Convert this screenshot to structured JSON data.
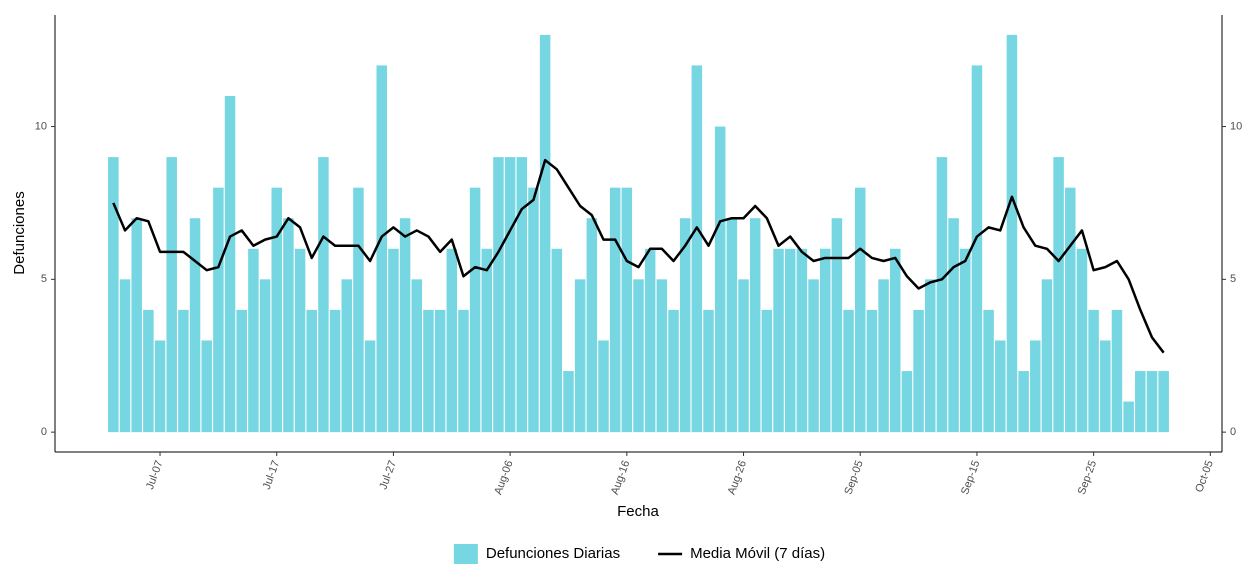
{
  "chart_data": {
    "type": "bar",
    "x_label": "Fecha",
    "y_label": "Defunciones",
    "x": [
      "Jul-03",
      "Jul-04",
      "Jul-05",
      "Jul-06",
      "Jul-07",
      "Jul-08",
      "Jul-09",
      "Jul-10",
      "Jul-11",
      "Jul-12",
      "Jul-13",
      "Jul-14",
      "Jul-15",
      "Jul-16",
      "Jul-17",
      "Jul-18",
      "Jul-19",
      "Jul-20",
      "Jul-21",
      "Jul-22",
      "Jul-23",
      "Jul-24",
      "Jul-25",
      "Jul-26",
      "Jul-27",
      "Jul-28",
      "Jul-29",
      "Jul-30",
      "Jul-31",
      "Aug-01",
      "Aug-02",
      "Aug-03",
      "Aug-04",
      "Aug-05",
      "Aug-06",
      "Aug-07",
      "Aug-08",
      "Aug-09",
      "Aug-10",
      "Aug-11",
      "Aug-12",
      "Aug-13",
      "Aug-14",
      "Aug-15",
      "Aug-16",
      "Aug-17",
      "Aug-18",
      "Aug-19",
      "Aug-20",
      "Aug-21",
      "Aug-22",
      "Aug-23",
      "Aug-24",
      "Aug-25",
      "Aug-26",
      "Aug-27",
      "Aug-28",
      "Aug-29",
      "Aug-30",
      "Aug-31",
      "Sep-01",
      "Sep-02",
      "Sep-03",
      "Sep-04",
      "Sep-05",
      "Sep-06",
      "Sep-07",
      "Sep-08",
      "Sep-09",
      "Sep-10",
      "Sep-11",
      "Sep-12",
      "Sep-13",
      "Sep-14",
      "Sep-15",
      "Sep-16",
      "Sep-17",
      "Sep-18",
      "Sep-19",
      "Sep-20",
      "Sep-21",
      "Sep-22",
      "Sep-23",
      "Sep-24",
      "Sep-25",
      "Sep-26",
      "Sep-27",
      "Sep-28",
      "Sep-29",
      "Sep-30",
      "Oct-01"
    ],
    "series": [
      {
        "name": "Defunciones Diarias",
        "type": "bar",
        "color": "#76d7e3",
        "values": [
          9,
          5,
          7,
          4,
          3,
          9,
          4,
          7,
          3,
          8,
          11,
          4,
          6,
          5,
          8,
          7,
          6,
          4,
          9,
          4,
          5,
          8,
          3,
          12,
          6,
          7,
          5,
          4,
          4,
          6,
          4,
          8,
          6,
          9,
          9,
          9,
          8,
          13,
          6,
          2,
          5,
          7,
          3,
          8,
          8,
          5,
          6,
          5,
          4,
          7,
          12,
          4,
          10,
          7,
          5,
          7,
          4,
          6,
          6,
          6,
          5,
          6,
          7,
          4,
          8,
          4,
          5,
          6,
          2,
          4,
          5,
          9,
          7,
          6,
          12,
          4,
          3,
          13,
          2,
          3,
          5,
          9,
          8,
          6,
          4,
          3,
          4,
          1,
          2,
          2,
          2
        ]
      },
      {
        "name": "Media Móvil (7 días)",
        "type": "line",
        "color": "#000000",
        "values": [
          7.5,
          6.6,
          7.0,
          6.9,
          5.9,
          5.9,
          5.9,
          5.6,
          5.3,
          5.4,
          6.4,
          6.6,
          6.1,
          6.3,
          6.4,
          7.0,
          6.7,
          5.7,
          6.4,
          6.1,
          6.1,
          6.1,
          5.6,
          6.4,
          6.7,
          6.4,
          6.6,
          6.4,
          5.9,
          6.3,
          5.1,
          5.4,
          5.3,
          5.9,
          6.6,
          7.3,
          7.6,
          8.9,
          8.6,
          8.0,
          7.4,
          7.1,
          6.3,
          6.3,
          5.6,
          5.4,
          6.0,
          6.0,
          5.6,
          6.1,
          6.7,
          6.1,
          6.9,
          7.0,
          7.0,
          7.4,
          7.0,
          6.1,
          6.4,
          5.9,
          5.6,
          5.7,
          5.7,
          5.7,
          6.0,
          5.7,
          5.6,
          5.7,
          5.1,
          4.7,
          4.9,
          5.0,
          5.4,
          5.6,
          6.4,
          6.7,
          6.6,
          7.7,
          6.7,
          6.1,
          6.0,
          5.6,
          6.1,
          6.6,
          5.3,
          5.4,
          5.6,
          5.0,
          4.0,
          3.1,
          2.6
        ]
      }
    ],
    "xlim": [
      "Jun-28",
      "Oct-06"
    ],
    "xticks": [
      "Jul-07",
      "Jul-17",
      "Jul-27",
      "Aug-06",
      "Aug-16",
      "Aug-26",
      "Sep-05",
      "Sep-15",
      "Sep-25",
      "Oct-05"
    ],
    "ylim": [
      -0.65,
      13.65
    ],
    "yticks": [
      0,
      5,
      10
    ],
    "y2lim": [
      -0.65,
      13.65
    ],
    "y2ticks": [
      0,
      5,
      10
    ],
    "grid": false,
    "legend": "bottom"
  }
}
